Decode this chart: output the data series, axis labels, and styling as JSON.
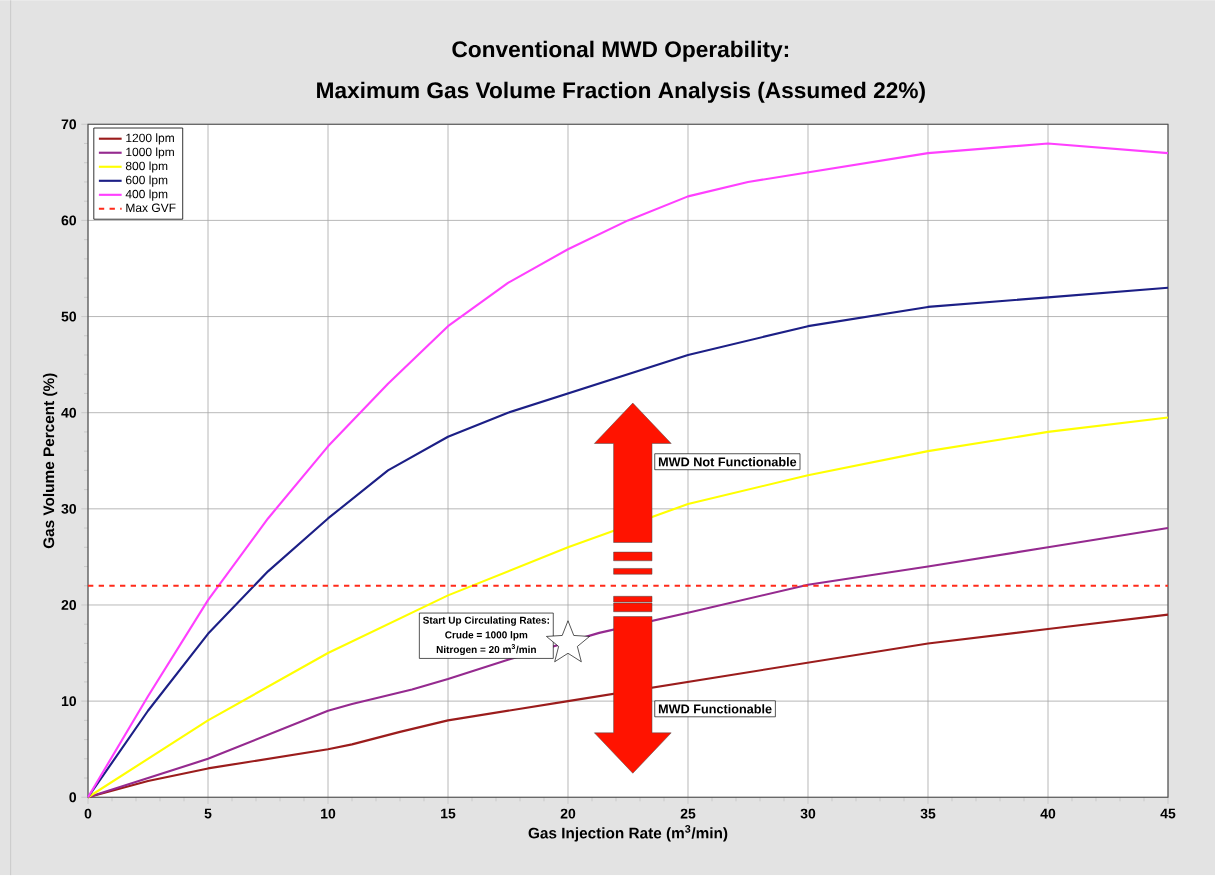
{
  "chart_data": {
    "type": "line",
    "title": "Conventional MWD Operability:",
    "subtitle": "Maximum Gas Volume Fraction Analysis (Assumed 22%)",
    "xlabel": "Gas Injection Rate (m$^{3}$/min)",
    "ylabel": "Gas Volume Percent (%)",
    "xlim": [
      0,
      45
    ],
    "xticks": [
      0,
      5,
      10,
      15,
      20,
      25,
      30,
      35,
      40,
      45
    ],
    "ylim": [
      0,
      70
    ],
    "yticks": [
      0,
      10,
      20,
      30,
      40,
      50,
      60,
      70
    ],
    "grid": true,
    "legend": "top left",
    "series": [
      {
        "name": "1200 lpm",
        "color": "#9b1c1c",
        "x": [
          0,
          2.5,
          5,
          7.5,
          10,
          11,
          13,
          15,
          20,
          25,
          30,
          35,
          40,
          45
        ],
        "values": [
          0,
          1.7,
          3,
          4,
          5,
          5.5,
          6.8,
          8,
          10,
          12,
          14,
          16,
          17.5,
          19
        ]
      },
      {
        "name": "1000 lpm",
        "color": "#952a8f",
        "x": [
          0,
          2.5,
          5,
          7.5,
          10,
          11,
          13.5,
          15,
          17.5,
          21.3,
          25,
          30,
          35,
          40,
          45
        ],
        "values": [
          0,
          2,
          4,
          6.5,
          9,
          9.7,
          11.2,
          12.3,
          14.3,
          17.1,
          19.2,
          22.1,
          24,
          26,
          28
        ]
      },
      {
        "name": "800 lpm",
        "color": "#ffff00",
        "x": [
          0,
          5,
          10,
          15,
          20,
          25,
          30,
          35,
          40,
          45
        ],
        "values": [
          0,
          8,
          15,
          21,
          26,
          30.5,
          33.5,
          36,
          38,
          39.5
        ]
      },
      {
        "name": "600 lpm",
        "color": "#1c1f86",
        "x": [
          0,
          2.5,
          5,
          7.5,
          10,
          12.5,
          15,
          17.5,
          20,
          22.5,
          25,
          30,
          35,
          40,
          45
        ],
        "values": [
          0,
          9,
          17,
          23.5,
          29,
          34,
          37.5,
          40,
          42,
          44,
          46,
          49,
          51,
          52,
          53
        ]
      },
      {
        "name": "400 lpm",
        "color": "#ff40ff",
        "x": [
          0,
          2.5,
          5,
          7.5,
          10,
          12.5,
          15,
          17.5,
          20,
          22.5,
          25,
          27.5,
          30,
          35,
          40,
          45
        ],
        "values": [
          0,
          10.5,
          20.5,
          29,
          36.5,
          43,
          49,
          53.5,
          57,
          60,
          62.5,
          64,
          65,
          67,
          68,
          67
        ]
      }
    ],
    "ref_lines": [
      {
        "axis": "y",
        "value": 22,
        "label": "Max GVF",
        "color": "#ff2a1a",
        "line_style": "dashed"
      }
    ],
    "annotations": [
      {
        "text": "**Start Up Circulating Rates:**",
        "x": 20,
        "y": 16
      },
      "Crude = 1000 lpm",
      "Nitrogen = 20 m$^{3}$/min",
      "MWD Not Functionable",
      "MWD Functionable"
    ]
  }
}
